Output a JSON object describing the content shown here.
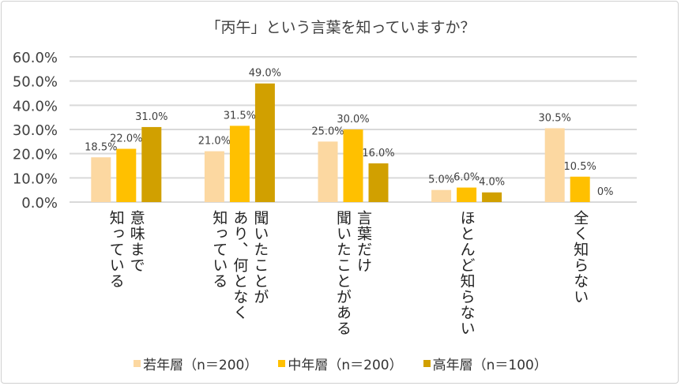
{
  "chart_data": {
    "type": "bar",
    "title": "「丙午」という言葉を知っていますか？",
    "categories": [
      "意味まで\n知っている",
      "聞いたことが\nあり、何となく\n知っている",
      "言葉だけ\n聞いたことがある",
      "ほとんど知らない",
      "全く知らない"
    ],
    "series": [
      {
        "name": "若年層（n＝200）",
        "color": "#FCD8A1",
        "values": [
          18.5,
          21.0,
          25.0,
          5.0,
          30.5
        ],
        "labels": [
          "18.5%",
          "21.0%",
          "25.0%",
          "5.0%",
          "30.5%"
        ]
      },
      {
        "name": "中年層（n＝200）",
        "color": "#FFC000",
        "values": [
          22.0,
          31.5,
          30.0,
          6.0,
          10.5
        ],
        "labels": [
          "22.0%",
          "31.5%",
          "30.0%",
          "6.0%",
          "10.5%"
        ]
      },
      {
        "name": "高年層（n＝100）",
        "color": "#D1A000",
        "values": [
          31.0,
          49.0,
          16.0,
          4.0,
          0
        ],
        "labels": [
          "31.0%",
          "49.0%",
          "16.0%",
          "4.0%",
          "0%"
        ]
      }
    ],
    "yticks": [
      "0.0%",
      "10.0%",
      "20.0%",
      "30.0%",
      "40.0%",
      "50.0%",
      "60.0%"
    ],
    "ylim": [
      0,
      60
    ],
    "grid": true,
    "legend": "bottom",
    "xlabel": "",
    "ylabel": ""
  }
}
